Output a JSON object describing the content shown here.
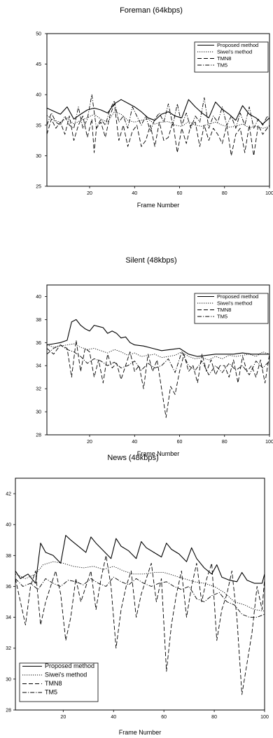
{
  "chart_data": [
    {
      "type": "line",
      "title": "Foreman (64kbps)",
      "xlabel": "Frame Number",
      "xlim": [
        1,
        100
      ],
      "ylim": [
        25,
        50
      ],
      "xticks": [
        20,
        40,
        60,
        80,
        100
      ],
      "yticks": [
        25,
        30,
        35,
        40,
        45,
        50
      ],
      "legend_position": "top-right",
      "series": [
        {
          "name": "Proposed method",
          "x": [
            1,
            4,
            7,
            10,
            13,
            16,
            19,
            22,
            25,
            28,
            31,
            34,
            37,
            40,
            43,
            46,
            49,
            52,
            55,
            58,
            61,
            64,
            67,
            70,
            73,
            76,
            79,
            82,
            85,
            88,
            91,
            94,
            97,
            100
          ],
          "y": [
            37.8,
            37.3,
            36.8,
            38.0,
            36.0,
            36.8,
            37.5,
            37.8,
            37.5,
            37.0,
            38.5,
            39.2,
            38.6,
            38.0,
            37.2,
            36.2,
            35.8,
            36.8,
            37.2,
            36.5,
            36.2,
            39.2,
            38.0,
            37.0,
            36.2,
            38.8,
            37.6,
            36.8,
            35.8,
            38.2,
            36.8,
            36.2,
            35.2,
            36.2
          ]
        },
        {
          "name": "Siwei's method",
          "x": [
            1,
            4,
            7,
            10,
            13,
            16,
            19,
            22,
            25,
            28,
            31,
            34,
            37,
            40,
            43,
            46,
            49,
            52,
            55,
            58,
            61,
            64,
            67,
            70,
            73,
            76,
            79,
            82,
            85,
            88,
            91,
            94,
            97,
            100
          ],
          "y": [
            36.6,
            35.8,
            35.5,
            36.2,
            35.2,
            35.8,
            36.2,
            36.8,
            36.0,
            35.5,
            37.2,
            36.8,
            35.8,
            35.5,
            35.8,
            36.0,
            35.2,
            35.5,
            35.6,
            35.0,
            34.8,
            35.6,
            35.0,
            34.8,
            35.2,
            35.5,
            35.0,
            34.7,
            34.8,
            35.2,
            34.6,
            34.8,
            34.5,
            34.8
          ]
        },
        {
          "name": "TMN8",
          "x": [
            1,
            3,
            5,
            7,
            9,
            11,
            13,
            15,
            17,
            19,
            21,
            22,
            23,
            25,
            27,
            29,
            31,
            33,
            35,
            37,
            39,
            41,
            43,
            45,
            47,
            49,
            51,
            53,
            55,
            57,
            59,
            61,
            63,
            65,
            67,
            69,
            71,
            73,
            75,
            77,
            79,
            81,
            83,
            85,
            87,
            89,
            91,
            93,
            95,
            97,
            99,
            100
          ],
          "y": [
            33.5,
            36.0,
            34.5,
            35.5,
            33.5,
            36.5,
            32.5,
            35.0,
            36.5,
            33.0,
            36.0,
            30.5,
            34.5,
            35.5,
            33.0,
            36.5,
            38.5,
            32.5,
            35.0,
            31.5,
            34.0,
            35.0,
            31.5,
            32.5,
            35.0,
            31.5,
            35.5,
            32.5,
            33.0,
            35.5,
            30.5,
            34.5,
            32.0,
            35.0,
            35.5,
            31.5,
            35.0,
            32.5,
            34.5,
            33.5,
            32.0,
            35.0,
            30.0,
            33.5,
            34.5,
            30.5,
            35.0,
            30.0,
            35.0,
            33.5,
            34.5,
            35.0
          ]
        },
        {
          "name": "TM5",
          "x": [
            1,
            3,
            5,
            7,
            9,
            11,
            13,
            15,
            17,
            19,
            21,
            23,
            25,
            27,
            29,
            31,
            33,
            35,
            37,
            39,
            41,
            43,
            45,
            47,
            49,
            51,
            53,
            55,
            57,
            59,
            61,
            63,
            65,
            67,
            69,
            71,
            73,
            75,
            77,
            79,
            81,
            83,
            85,
            87,
            89,
            91,
            93,
            95,
            97,
            99,
            100
          ],
          "y": [
            35.0,
            37.0,
            35.5,
            35.0,
            36.5,
            35.0,
            34.5,
            38.0,
            34.5,
            36.0,
            40.0,
            34.5,
            36.0,
            35.0,
            37.5,
            39.0,
            35.5,
            36.5,
            34.5,
            38.0,
            36.5,
            35.0,
            36.5,
            34.0,
            36.0,
            37.0,
            35.5,
            38.5,
            35.0,
            38.5,
            35.0,
            37.0,
            34.5,
            36.5,
            35.5,
            39.5,
            34.5,
            36.5,
            35.5,
            38.0,
            35.0,
            36.5,
            34.5,
            37.0,
            35.0,
            38.0,
            34.5,
            36.0,
            35.0,
            36.5,
            36.0
          ]
        }
      ]
    },
    {
      "type": "line",
      "title": "Silent (48kbps)",
      "xlabel": "Frame Number",
      "xlim": [
        1,
        100
      ],
      "ylim": [
        28,
        41
      ],
      "xticks": [
        20,
        40,
        60,
        80,
        100
      ],
      "yticks": [
        28,
        30,
        32,
        34,
        36,
        38,
        40
      ],
      "legend_position": "top-right",
      "series": [
        {
          "name": "Proposed method",
          "x": [
            1,
            4,
            7,
            10,
            12,
            14,
            16,
            18,
            20,
            22,
            24,
            26,
            28,
            30,
            32,
            34,
            36,
            38,
            40,
            44,
            48,
            52,
            56,
            60,
            64,
            68,
            72,
            76,
            80,
            84,
            88,
            92,
            96,
            100
          ],
          "y": [
            35.8,
            35.9,
            36.0,
            36.2,
            37.8,
            38.0,
            37.5,
            37.2,
            37.0,
            37.5,
            37.4,
            37.3,
            36.8,
            37.0,
            36.8,
            36.4,
            36.5,
            36.0,
            35.8,
            35.7,
            35.5,
            35.3,
            35.4,
            35.5,
            35.0,
            34.8,
            34.9,
            35.0,
            35.0,
            35.0,
            35.1,
            35.0,
            35.0,
            35.0
          ]
        },
        {
          "name": "Siwei's method",
          "x": [
            1,
            4,
            7,
            10,
            13,
            16,
            19,
            22,
            25,
            28,
            31,
            34,
            37,
            40,
            43,
            46,
            49,
            52,
            55,
            58,
            61,
            64,
            67,
            70,
            73,
            76,
            79,
            82,
            85,
            88,
            91,
            94,
            97,
            100
          ],
          "y": [
            35.8,
            35.6,
            35.7,
            35.8,
            35.9,
            35.6,
            35.4,
            35.5,
            35.3,
            35.1,
            35.4,
            35.2,
            34.9,
            35.1,
            34.8,
            34.9,
            35.0,
            34.7,
            34.8,
            34.9,
            35.2,
            34.8,
            34.6,
            34.7,
            34.5,
            34.8,
            34.6,
            34.9,
            34.8,
            34.9,
            35.0,
            34.8,
            35.2,
            35.0
          ]
        },
        {
          "name": "TMN8",
          "x": [
            1,
            4,
            7,
            10,
            12,
            14,
            16,
            18,
            20,
            22,
            24,
            26,
            28,
            30,
            32,
            34,
            36,
            38,
            40,
            42,
            44,
            46,
            48,
            50,
            52,
            54,
            56,
            58,
            60,
            62,
            64,
            66,
            68,
            70,
            72,
            74,
            76,
            78,
            80,
            82,
            84,
            86,
            88,
            90,
            92,
            94,
            96,
            98,
            100
          ],
          "y": [
            35.5,
            35.0,
            35.8,
            35.5,
            33.0,
            36.2,
            33.5,
            35.5,
            35.2,
            33.0,
            34.5,
            32.5,
            35.0,
            33.8,
            34.2,
            32.8,
            34.0,
            35.2,
            33.5,
            34.0,
            32.0,
            35.0,
            33.5,
            34.5,
            32.0,
            29.5,
            32.2,
            31.5,
            33.5,
            35.0,
            33.5,
            34.0,
            32.5,
            35.0,
            33.5,
            34.5,
            33.2,
            34.0,
            34.0,
            33.0,
            34.5,
            32.5,
            34.8,
            33.5,
            34.0,
            33.0,
            34.5,
            32.5,
            35.0
          ]
        },
        {
          "name": "TM5",
          "x": [
            1,
            4,
            7,
            10,
            13,
            16,
            19,
            22,
            25,
            28,
            31,
            34,
            37,
            40,
            43,
            46,
            49,
            52,
            55,
            58,
            61,
            64,
            67,
            70,
            73,
            76,
            79,
            82,
            85,
            88,
            91,
            94,
            97,
            100
          ],
          "y": [
            35.0,
            35.5,
            35.8,
            35.4,
            35.2,
            34.8,
            34.2,
            34.6,
            34.4,
            34.0,
            34.3,
            33.8,
            34.0,
            34.4,
            33.6,
            34.2,
            33.8,
            34.0,
            34.6,
            33.4,
            35.2,
            34.0,
            33.6,
            34.4,
            33.2,
            34.0,
            33.4,
            34.2,
            33.6,
            34.0,
            33.2,
            34.4,
            33.8,
            34.4
          ]
        }
      ]
    },
    {
      "type": "line",
      "title": "News (48kbps)",
      "xlabel": "Frame Number",
      "xlim": [
        1,
        100
      ],
      "ylim": [
        28,
        43
      ],
      "xticks": [
        20,
        40,
        60,
        80,
        100
      ],
      "yticks": [
        28,
        30,
        32,
        34,
        36,
        38,
        40,
        42
      ],
      "legend_position": "bottom-left",
      "series": [
        {
          "name": "Proposed method",
          "x": [
            1,
            3,
            6,
            9,
            11,
            13,
            16,
            19,
            21,
            23,
            26,
            29,
            31,
            33,
            36,
            39,
            41,
            43,
            46,
            49,
            51,
            53,
            56,
            59,
            61,
            63,
            66,
            69,
            71,
            73,
            76,
            79,
            81,
            83,
            86,
            89,
            91,
            93,
            96,
            99,
            100
          ],
          "y": [
            37.0,
            36.5,
            36.8,
            36.2,
            38.8,
            38.2,
            38.0,
            37.5,
            39.3,
            39.0,
            38.6,
            38.2,
            39.2,
            38.8,
            38.3,
            37.8,
            39.1,
            38.6,
            38.3,
            37.8,
            38.9,
            38.5,
            38.2,
            37.9,
            38.8,
            38.4,
            38.1,
            37.6,
            38.5,
            37.8,
            37.2,
            36.8,
            37.4,
            36.6,
            36.4,
            36.3,
            36.9,
            36.4,
            36.2,
            36.2,
            36.8
          ]
        },
        {
          "name": "Siwei's method",
          "x": [
            1,
            5,
            9,
            12,
            16,
            20,
            24,
            28,
            32,
            36,
            40,
            44,
            48,
            52,
            56,
            60,
            64,
            68,
            72,
            76,
            80,
            84,
            88,
            92,
            96,
            100
          ],
          "y": [
            36.8,
            36.5,
            36.8,
            37.4,
            37.6,
            37.5,
            37.3,
            37.2,
            37.3,
            37.1,
            37.3,
            37.0,
            36.8,
            36.8,
            36.9,
            36.9,
            36.7,
            36.5,
            36.3,
            36.2,
            36.0,
            35.6,
            35.0,
            34.8,
            34.5,
            34.4
          ]
        },
        {
          "name": "TMN8",
          "x": [
            1,
            3,
            5,
            7,
            9,
            11,
            13,
            15,
            17,
            19,
            21,
            23,
            25,
            27,
            29,
            31,
            33,
            35,
            37,
            39,
            41,
            43,
            45,
            47,
            49,
            51,
            53,
            55,
            57,
            59,
            61,
            63,
            65,
            67,
            69,
            71,
            73,
            75,
            77,
            79,
            81,
            83,
            85,
            87,
            89,
            91,
            93,
            95,
            97,
            99,
            100
          ],
          "y": [
            36.5,
            35.0,
            33.5,
            36.0,
            37.0,
            33.5,
            35.0,
            36.0,
            37.0,
            35.5,
            32.5,
            34.0,
            36.5,
            35.0,
            36.0,
            37.0,
            34.5,
            36.5,
            38.0,
            36.0,
            32.0,
            34.5,
            36.0,
            37.0,
            34.0,
            35.5,
            36.5,
            37.5,
            35.0,
            36.5,
            30.5,
            33.5,
            35.5,
            37.0,
            34.0,
            36.0,
            37.5,
            35.0,
            36.5,
            37.5,
            32.5,
            34.5,
            35.5,
            37.0,
            34.0,
            29.0,
            31.0,
            33.0,
            36.0,
            34.5,
            36.5
          ]
        },
        {
          "name": "TM5",
          "x": [
            1,
            4,
            7,
            10,
            13,
            16,
            19,
            22,
            25,
            28,
            31,
            34,
            37,
            40,
            43,
            46,
            49,
            52,
            55,
            58,
            61,
            64,
            67,
            70,
            73,
            76,
            79,
            82,
            85,
            88,
            91,
            94,
            97,
            100
          ],
          "y": [
            36.5,
            36.0,
            36.2,
            35.8,
            36.5,
            36.2,
            36.0,
            36.4,
            36.3,
            36.1,
            36.5,
            36.2,
            36.0,
            36.6,
            36.3,
            36.1,
            36.5,
            36.2,
            36.0,
            36.2,
            36.3,
            36.0,
            35.8,
            36.0,
            35.2,
            35.0,
            35.4,
            35.6,
            35.0,
            34.8,
            34.2,
            34.0,
            34.0,
            34.2
          ]
        }
      ]
    }
  ]
}
